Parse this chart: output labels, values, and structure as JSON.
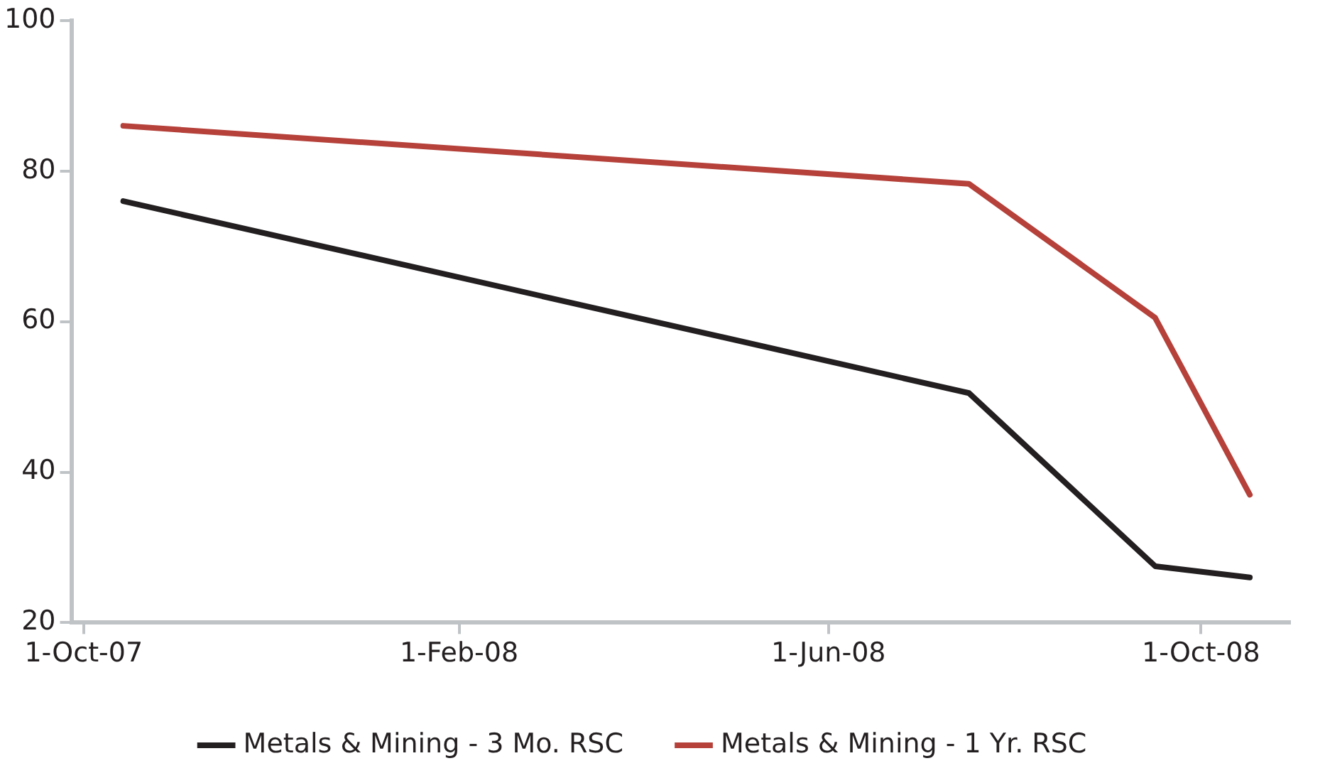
{
  "chart_data": {
    "type": "line",
    "x": [
      "2007-10-14",
      "2008-07-17",
      "2008-09-16",
      "2008-10-17"
    ],
    "series": [
      {
        "name": "Metals & Mining - 3 Mo. RSC",
        "color": "#231f20",
        "values": [
          76,
          50.5,
          27.5,
          26
        ]
      },
      {
        "name": "Metals & Mining - 1 Yr. RSC",
        "color": "#b5413a",
        "values": [
          86,
          78.3,
          60.5,
          37
        ]
      }
    ],
    "xlim": [
      "2007-09-27",
      "2008-10-30"
    ],
    "xticks": [
      {
        "value": "2007-10-01",
        "label": "1-Oct-07"
      },
      {
        "value": "2008-02-01",
        "label": "1-Feb-08"
      },
      {
        "value": "2008-06-01",
        "label": "1-Jun-08"
      },
      {
        "value": "2008-10-01",
        "label": "1-Oct-08"
      }
    ],
    "ylim": [
      20,
      100
    ],
    "yticks": [
      20,
      40,
      60,
      80,
      100
    ],
    "grid": false,
    "legend": "bottom",
    "marker": "none",
    "line_style": "solid"
  }
}
